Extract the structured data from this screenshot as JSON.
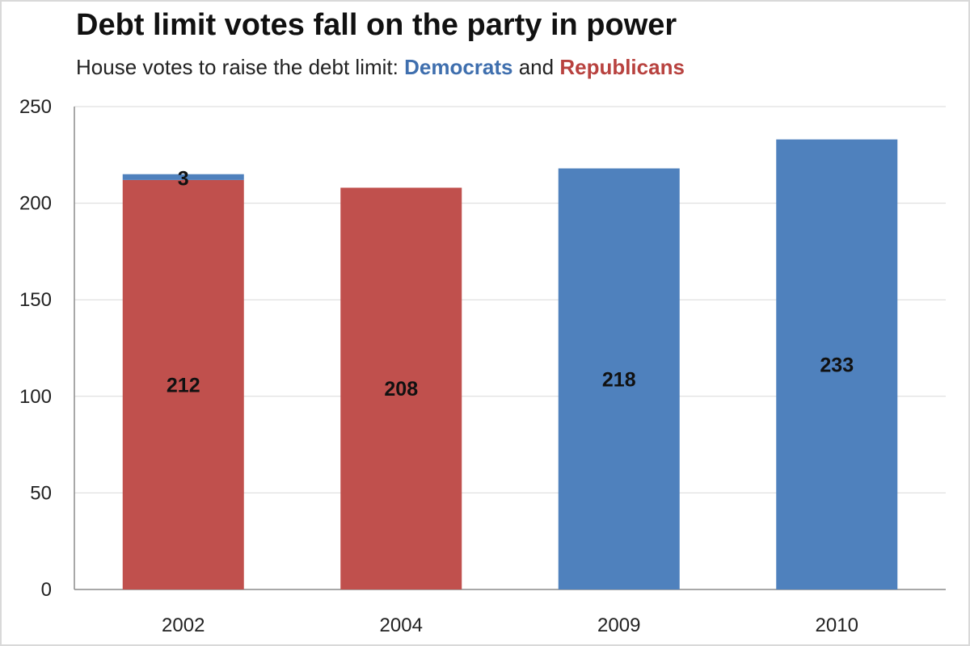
{
  "chart_data": {
    "type": "bar",
    "stacked": true,
    "title": "Debt limit votes fall on the party in power",
    "subtitle": {
      "prefix": "House votes to raise the debt limit: ",
      "dem_word": "Democrats",
      "joiner": " and ",
      "rep_word": "Republicans"
    },
    "categories": [
      "2002",
      "2004",
      "2009",
      "2010"
    ],
    "series": [
      {
        "key": "republicans",
        "color": "#c0504d",
        "values": [
          212,
          208,
          0,
          0
        ],
        "labels": [
          "212",
          "208",
          "",
          ""
        ]
      },
      {
        "key": "democrats",
        "color": "#4f81bd",
        "values": [
          3,
          0,
          218,
          233
        ],
        "labels": [
          "3",
          "",
          "218",
          "233"
        ]
      }
    ],
    "ylim": [
      0,
      250
    ],
    "yticks": [
      "0",
      "50",
      "100",
      "150",
      "200",
      "250"
    ],
    "grid": true,
    "legend": "none"
  }
}
